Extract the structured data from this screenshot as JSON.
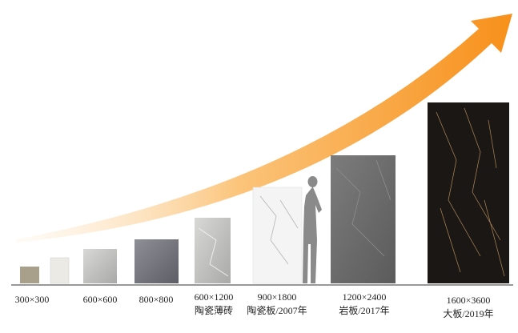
{
  "items": [
    {
      "label": [
        "300×300"
      ]
    },
    {
      "label": [
        "600×600"
      ]
    },
    {
      "label": [
        "800×800"
      ]
    },
    {
      "label": [
        "600×1200",
        "陶瓷薄砖"
      ]
    },
    {
      "label": [
        "900×1800",
        "陶瓷板/2007年"
      ]
    },
    {
      "label": [
        "1200×2400",
        "岩板/2017年"
      ]
    },
    {
      "label": [
        "1600×3600",
        "大板/2019年"
      ]
    }
  ]
}
